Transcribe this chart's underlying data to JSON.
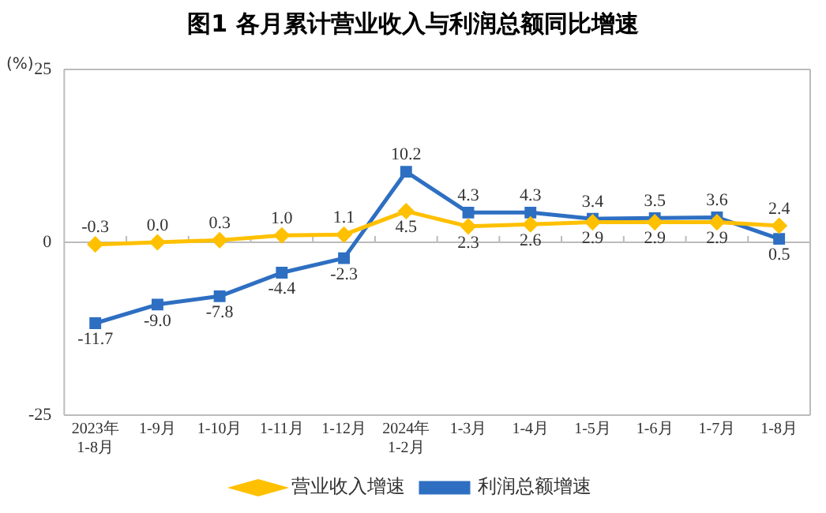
{
  "chart_data": {
    "type": "line",
    "title": "图1  各月累计营业收入与利润总额同比增速",
    "ylabel": "(%)",
    "categories": [
      "2023年\n1-8月",
      "1-9月",
      "1-10月",
      "1-11月",
      "1-12月",
      "2024年\n1-2月",
      "1-3月",
      "1-4月",
      "1-5月",
      "1-6月",
      "1-7月",
      "1-8月"
    ],
    "series": [
      {
        "name": "营业收入增速",
        "color": "#ffc000",
        "marker": "diamond",
        "values": [
          -0.3,
          0.0,
          0.3,
          1.0,
          1.1,
          4.5,
          2.3,
          2.6,
          2.9,
          2.9,
          2.9,
          2.4
        ],
        "value_labels": [
          "-0.3",
          "0.0",
          "0.3",
          "1.0",
          "1.1",
          "4.5",
          "2.3",
          "2.6",
          "2.9",
          "2.9",
          "2.9",
          "2.4"
        ]
      },
      {
        "name": "利润总额增速",
        "color": "#2e6fc2",
        "marker": "square",
        "values": [
          -11.7,
          -9.0,
          -7.8,
          -4.4,
          -2.3,
          10.2,
          4.3,
          4.3,
          3.4,
          3.5,
          3.6,
          0.5
        ],
        "value_labels": [
          "-11.7",
          "-9.0",
          "-7.8",
          "-4.4",
          "-2.3",
          "10.2",
          "4.3",
          "4.3",
          "3.4",
          "3.5",
          "3.6",
          "0.5"
        ]
      }
    ],
    "ylim": [
      -25,
      25
    ],
    "yticks": [
      -25,
      0,
      25
    ],
    "grid": "y",
    "legend": "bottom"
  }
}
